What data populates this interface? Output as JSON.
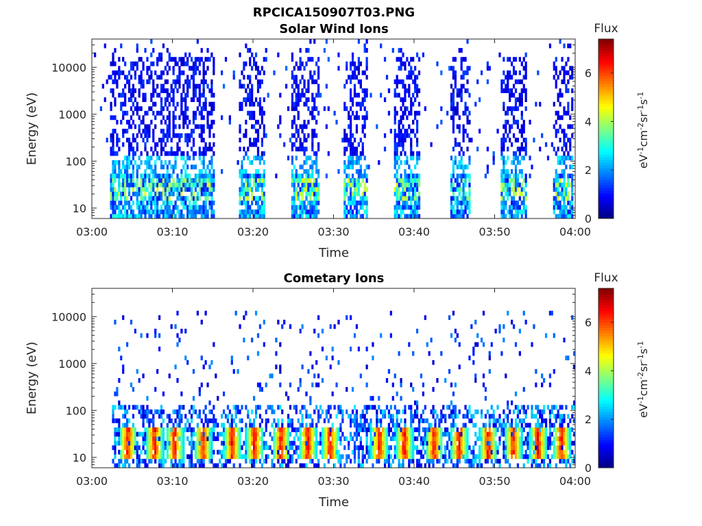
{
  "figure_title": "RPCICA150907T03.PNG",
  "chart_data": [
    {
      "type": "heatmap",
      "title": "Solar Wind Ions",
      "xlabel": "Time",
      "ylabel": "Energy (eV)",
      "x_ticks": [
        "03:00",
        "03:10",
        "03:20",
        "03:30",
        "03:40",
        "03:50",
        "04:00"
      ],
      "x_range_minutes": [
        0,
        60
      ],
      "y_scale": "log",
      "y_ticks": [
        "10",
        "100",
        "1000",
        "10000"
      ],
      "ylim": [
        6,
        40000
      ],
      "colorbar": {
        "label": "Flux",
        "unit": "eV⁻¹cm⁻²sr⁻¹s⁻¹",
        "range": [
          0,
          7.4
        ],
        "ticks": [
          "0",
          "2",
          "4",
          "6"
        ],
        "colormap": "jet"
      },
      "time_bands_minutes": [
        [
          2.3,
          15.2
        ],
        [
          18.3,
          21.5
        ],
        [
          24.7,
          28.3
        ],
        [
          31.2,
          34.3
        ],
        [
          37.5,
          40.8
        ],
        [
          44.4,
          47.1
        ],
        [
          50.8,
          54.1
        ],
        [
          57.2,
          59.8
        ]
      ],
      "low_energy_peak_flux": 4.5,
      "high_energy_typical_flux": 1.0
    },
    {
      "type": "heatmap",
      "title": "Cometary Ions",
      "xlabel": "Time",
      "ylabel": "Energy (eV)",
      "x_ticks": [
        "03:00",
        "03:10",
        "03:20",
        "03:30",
        "03:40",
        "03:50",
        "04:00"
      ],
      "x_range_minutes": [
        0,
        60
      ],
      "y_scale": "log",
      "y_ticks": [
        "10",
        "100",
        "1000",
        "10000"
      ],
      "ylim": [
        6,
        40000
      ],
      "colorbar": {
        "label": "Flux",
        "unit": "eV⁻¹cm⁻²sr⁻¹s⁻¹",
        "range": [
          0,
          7.4
        ],
        "ticks": [
          "0",
          "2",
          "4",
          "6"
        ],
        "colormap": "jet"
      },
      "peak_flux": 7.0,
      "hotspot_times_minutes": [
        4.5,
        7.8,
        10.3,
        13.8,
        17.4,
        20.2,
        23.5,
        26.8,
        29.6,
        35.7,
        38.8,
        42.5,
        45.6,
        49.2,
        52.3,
        55.4,
        58.3
      ],
      "hotspot_energy_eV": [
        12,
        35
      ]
    }
  ]
}
